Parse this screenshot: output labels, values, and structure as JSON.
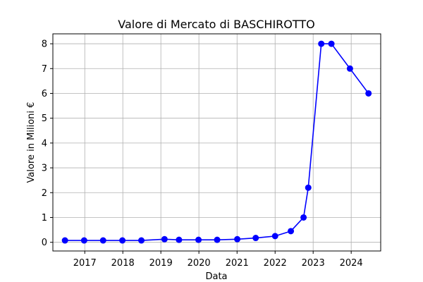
{
  "chart_data": {
    "type": "line",
    "title": "Valore di Mercato di BASCHIROTTO",
    "xlabel": "Data",
    "ylabel": "Valore in Milioni €",
    "x_ticks": [
      "2017",
      "2018",
      "2019",
      "2020",
      "2021",
      "2022",
      "2023",
      "2024"
    ],
    "y_ticks": [
      "0",
      "1",
      "2",
      "3",
      "4",
      "5",
      "6",
      "7",
      "8"
    ],
    "ylim": [
      -0.35,
      8.4
    ],
    "xlim": [
      "2016-03-01",
      "2024-10-10"
    ],
    "grid": true,
    "color": "#0000ff",
    "series": [
      {
        "x": [
          "2016-06-25",
          "2016-12-26",
          "2017-06-26",
          "2017-12-28",
          "2018-06-28",
          "2019-02-05",
          "2019-06-24",
          "2019-12-28",
          "2020-06-24",
          "2021-01-03",
          "2021-06-29",
          "2022-01-01",
          "2022-06-01",
          "2022-10-01",
          "2022-11-15",
          "2023-03-20",
          "2023-06-25",
          "2023-12-20",
          "2024-06-15"
        ],
        "values": [
          0.075,
          0.075,
          0.075,
          0.075,
          0.075,
          0.125,
          0.1,
          0.1,
          0.1,
          0.125,
          0.175,
          0.25,
          0.45,
          1.0,
          2.2,
          8.0,
          8.0,
          7.0,
          6.0
        ]
      }
    ]
  }
}
